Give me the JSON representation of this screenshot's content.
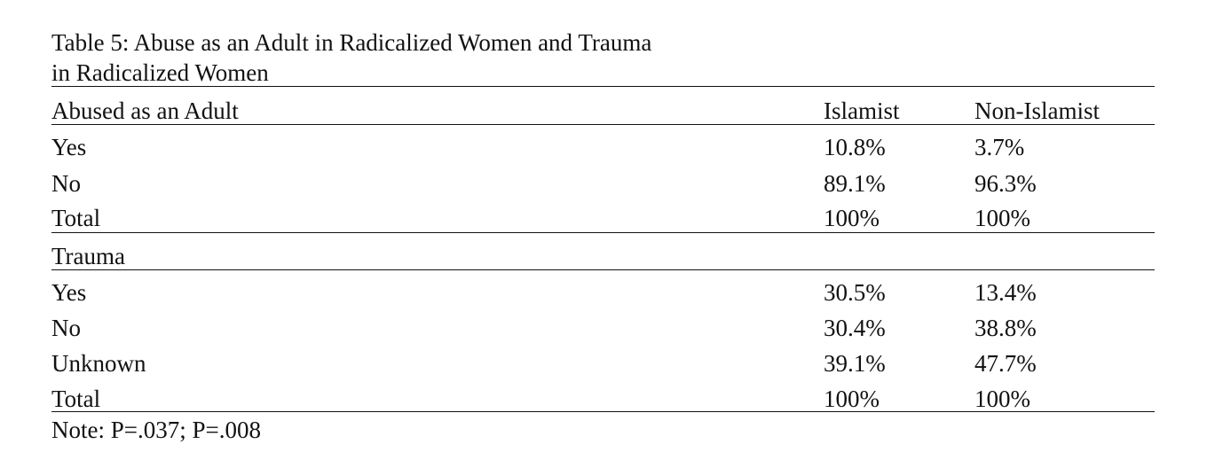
{
  "title_lines": [
    "Table 5: Abuse as an Adult in Radicalized Women and Trauma",
    "in Radicalized Women"
  ],
  "table": {
    "sections": [
      {
        "header": [
          "Abused as an Adult",
          "Islamist",
          "Non-Islamist"
        ],
        "rows": [
          [
            "Yes",
            "10.8%",
            "3.7%"
          ],
          [
            "No",
            "89.1%",
            "96.3%"
          ],
          [
            "Total",
            "100%",
            "100%"
          ]
        ]
      },
      {
        "header": [
          "Trauma"
        ],
        "rows": [
          [
            "Yes",
            "30.5%",
            "13.4%"
          ],
          [
            "No",
            "30.4%",
            "38.8%"
          ],
          [
            "Unknown",
            "39.1%",
            "47.7%"
          ],
          [
            "Total",
            "100%",
            "100%"
          ]
        ]
      }
    ]
  },
  "note": "Note: P=.037; P=.008"
}
